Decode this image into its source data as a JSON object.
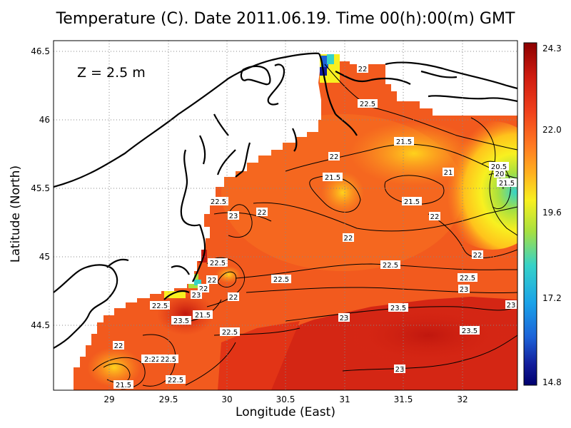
{
  "title": "Temperature (C). Date 2011.06.19. Time 00(h):00(m) GMT",
  "depth_label": "Z = 2.5 m",
  "x_axis": {
    "label": "Longitude (East)",
    "ticks": [
      "29",
      "29.5",
      "30",
      "30.5",
      "31",
      "31.5",
      "32"
    ]
  },
  "y_axis": {
    "label": "Latitude (North)",
    "ticks": [
      "46.5",
      "46",
      "45.5",
      "45",
      "44.5"
    ]
  },
  "colorbar": {
    "ticks": [
      "24.3",
      "22.0",
      "19.6",
      "17.2",
      "14.8"
    ],
    "colors": [
      "#8b0000",
      "#c41a10",
      "#e8321a",
      "#f55c1e",
      "#ff8a22",
      "#ffc21c",
      "#f8f020",
      "#a8e040",
      "#36d2c8",
      "#1aa2e8",
      "#1c62d8",
      "#121c9a",
      "#00006e"
    ]
  },
  "contour_labels": [
    {
      "text": "22"
    },
    {
      "text": "22.5"
    },
    {
      "text": "21.5"
    },
    {
      "text": "22"
    },
    {
      "text": "21.5"
    },
    {
      "text": "21.5"
    },
    {
      "text": "21"
    },
    {
      "text": "20.5"
    },
    {
      "text": "20"
    },
    {
      "text": "21.5"
    },
    {
      "text": "22.5"
    },
    {
      "text": "23"
    },
    {
      "text": "22"
    },
    {
      "text": "22"
    },
    {
      "text": "22"
    },
    {
      "text": "22"
    },
    {
      "text": "22.5"
    },
    {
      "text": "22"
    },
    {
      "text": "22.5"
    },
    {
      "text": "22.5"
    },
    {
      "text": "22.5"
    },
    {
      "text": "23"
    },
    {
      "text": "22"
    },
    {
      "text": "22"
    },
    {
      "text": "23"
    },
    {
      "text": "21.5"
    },
    {
      "text": "22.5"
    },
    {
      "text": "23.5"
    },
    {
      "text": "22.5"
    },
    {
      "text": "23"
    },
    {
      "text": "23.5"
    },
    {
      "text": "23.5"
    },
    {
      "text": "23"
    },
    {
      "text": "22.5"
    },
    {
      "text": "22"
    },
    {
      "text": "2:22.5"
    },
    {
      "text": "22.5"
    },
    {
      "text": "21.5"
    },
    {
      "text": "23"
    }
  ]
}
